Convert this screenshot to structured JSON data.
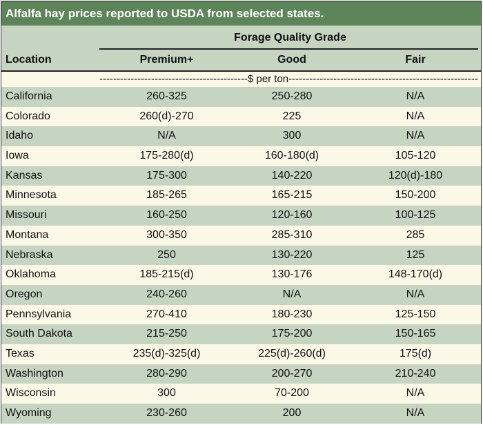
{
  "title": "Alfalfa hay prices reported to USDA from selected states.",
  "header": {
    "group_label": "Forage Quality Grade",
    "location_label": "Location",
    "columns": [
      "Premium+",
      "Good",
      "Fair"
    ],
    "units": "-------------------------------------------$ per ton-------------------------------------------------------"
  },
  "rows": [
    {
      "location": "California",
      "premium": "260-325",
      "good": "250-280",
      "fair": "N/A"
    },
    {
      "location": "Colorado",
      "premium": "260(d)-270",
      "good": "225",
      "fair": "N/A"
    },
    {
      "location": "Idaho",
      "premium": "N/A",
      "good": "300",
      "fair": "N/A"
    },
    {
      "location": "Iowa",
      "premium": "175-280(d)",
      "good": "160-180(d)",
      "fair": "105-120"
    },
    {
      "location": "Kansas",
      "premium": "175-300",
      "good": "140-220",
      "fair": "120(d)-180"
    },
    {
      "location": "Minnesota",
      "premium": "185-265",
      "good": "165-215",
      "fair": "150-200"
    },
    {
      "location": "Missouri",
      "premium": "160-250",
      "good": "120-160",
      "fair": "100-125"
    },
    {
      "location": "Montana",
      "premium": "300-350",
      "good": "285-310",
      "fair": "285"
    },
    {
      "location": "Nebraska",
      "premium": "250",
      "good": "130-220",
      "fair": "125"
    },
    {
      "location": "Oklahoma",
      "premium": "185-215(d)",
      "good": "130-176",
      "fair": "148-170(d)"
    },
    {
      "location": "Oregon",
      "premium": "240-260",
      "good": "N/A",
      "fair": "N/A"
    },
    {
      "location": "Pennsylvania",
      "premium": "270-410",
      "good": "180-230",
      "fair": "125-150"
    },
    {
      "location": "South Dakota",
      "premium": "215-250",
      "good": "175-200",
      "fair": "150-165"
    },
    {
      "location": "Texas",
      "premium": "235(d)-325(d)",
      "good": "225(d)-260(d)",
      "fair": "175(d)"
    },
    {
      "location": "Washington",
      "premium": "280-290",
      "good": "200-270",
      "fair": "210-240"
    },
    {
      "location": "Wisconsin",
      "premium": "300",
      "good": "70-200",
      "fair": "N/A"
    },
    {
      "location": "Wyoming",
      "premium": "230-260",
      "good": "200",
      "fair": "N/A"
    }
  ]
}
